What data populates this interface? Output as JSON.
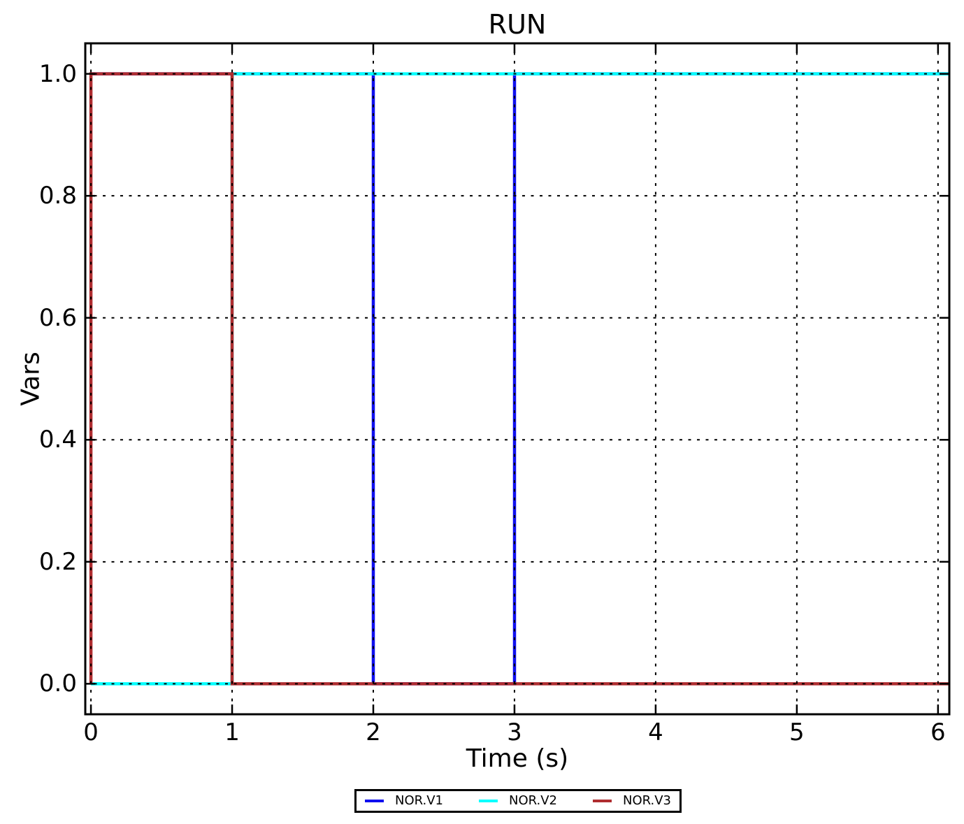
{
  "chart_data": {
    "type": "line",
    "subtype": "digital-step-signals",
    "title": "RUN",
    "xlabel": "Time (s)",
    "ylabel": "Vars",
    "xlim": [
      -0.04,
      6.08
    ],
    "ylim": [
      -0.05,
      1.05
    ],
    "xticks": {
      "values": [
        0,
        1,
        2,
        3,
        4,
        5,
        6
      ],
      "labels": [
        "0",
        "1",
        "2",
        "3",
        "4",
        "5",
        "6"
      ]
    },
    "yticks": {
      "values": [
        0.0,
        0.2,
        0.4,
        0.6,
        0.8,
        1.0
      ],
      "labels": [
        "0.0",
        "0.2",
        "0.4",
        "0.6",
        "0.8",
        "1.0"
      ]
    },
    "grid": {
      "visible": true,
      "style": "dotted",
      "color": "#000000",
      "drawn_above_data": true
    },
    "frame_color": "#000000",
    "legend_position": "bottom-center-outside",
    "series": [
      {
        "name": "NOR.V1",
        "color": "#0f0ff0",
        "points": [
          [
            0,
            1
          ],
          [
            2,
            1
          ],
          [
            2,
            0
          ],
          [
            3,
            0
          ],
          [
            3,
            1
          ],
          [
            6,
            1
          ]
        ]
      },
      {
        "name": "NOR.V2",
        "color": "#00ffff",
        "points": [
          [
            0,
            0
          ],
          [
            1,
            0
          ],
          [
            1,
            1
          ],
          [
            6,
            1
          ]
        ]
      },
      {
        "name": "NOR.V3",
        "color": "#af2d30",
        "points": [
          [
            0,
            0
          ],
          [
            0,
            1
          ],
          [
            1,
            1
          ],
          [
            1,
            0
          ],
          [
            6,
            0
          ]
        ]
      }
    ]
  }
}
